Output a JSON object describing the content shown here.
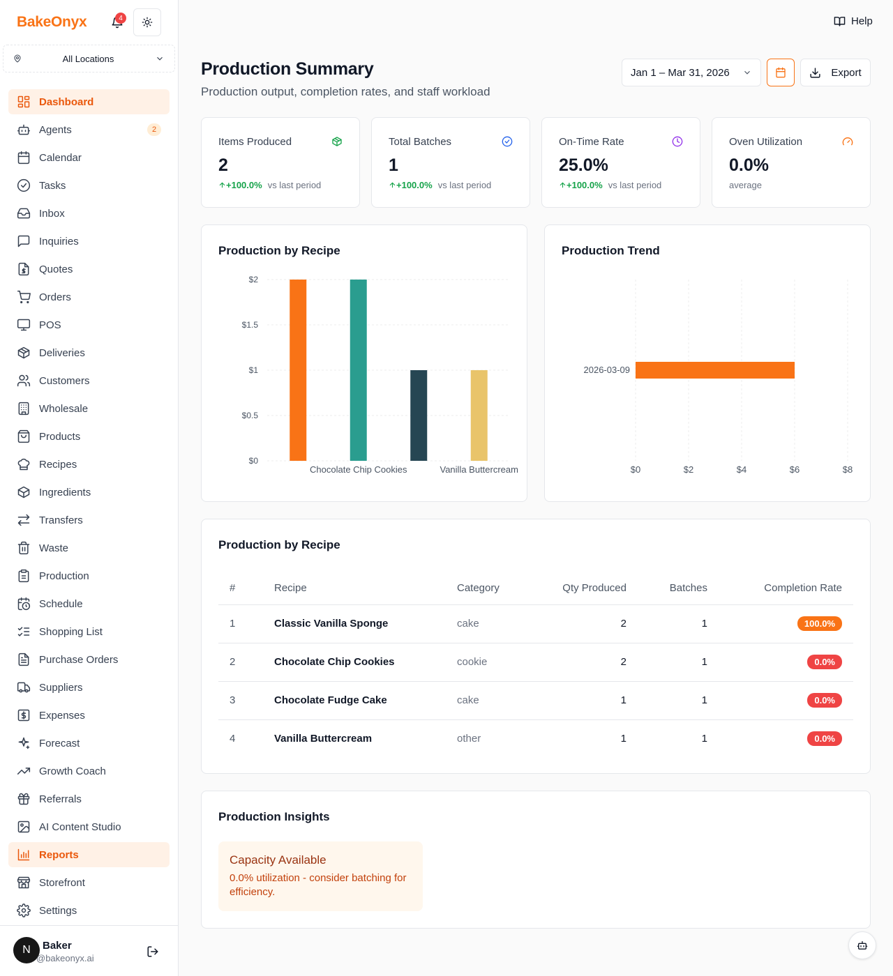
{
  "app": {
    "brand": "BakeOnyx",
    "notifications_count": "4",
    "location": "All Locations"
  },
  "sidebar": {
    "items": [
      {
        "label": "Dashboard",
        "icon": "dashboard-icon",
        "active": true
      },
      {
        "label": "Agents",
        "icon": "bot-icon",
        "badge": "2"
      },
      {
        "label": "Calendar",
        "icon": "calendar-icon"
      },
      {
        "label": "Tasks",
        "icon": "check-circle-icon"
      },
      {
        "label": "Inbox",
        "icon": "inbox-icon"
      },
      {
        "label": "Inquiries",
        "icon": "message-icon"
      },
      {
        "label": "Quotes",
        "icon": "file-dollar-icon"
      },
      {
        "label": "Orders",
        "icon": "cart-icon"
      },
      {
        "label": "POS",
        "icon": "monitor-icon"
      },
      {
        "label": "Deliveries",
        "icon": "package-icon"
      },
      {
        "label": "Customers",
        "icon": "users-icon"
      },
      {
        "label": "Wholesale",
        "icon": "building-icon"
      },
      {
        "label": "Products",
        "icon": "shopping-bag-icon"
      },
      {
        "label": "Recipes",
        "icon": "chef-hat-icon"
      },
      {
        "label": "Ingredients",
        "icon": "box-icon"
      },
      {
        "label": "Transfers",
        "icon": "arrows-icon"
      },
      {
        "label": "Waste",
        "icon": "trash-icon"
      },
      {
        "label": "Production",
        "icon": "clipboard-icon"
      },
      {
        "label": "Schedule",
        "icon": "calendar-clock-icon"
      },
      {
        "label": "Shopping List",
        "icon": "list-checks-icon"
      },
      {
        "label": "Purchase Orders",
        "icon": "file-text-icon"
      },
      {
        "label": "Suppliers",
        "icon": "truck-icon"
      },
      {
        "label": "Expenses",
        "icon": "receipt-icon"
      },
      {
        "label": "Forecast",
        "icon": "sparkles-icon"
      },
      {
        "label": "Growth Coach",
        "icon": "trending-up-icon"
      },
      {
        "label": "Referrals",
        "icon": "gift-icon"
      },
      {
        "label": "AI Content Studio",
        "icon": "image-sparkle-icon"
      },
      {
        "label": "Reports",
        "icon": "bar-chart-icon",
        "active": true
      },
      {
        "label": "Storefront",
        "icon": "store-icon"
      },
      {
        "label": "Settings",
        "icon": "gear-icon"
      }
    ]
  },
  "user": {
    "initial": "N",
    "name": "Baker",
    "email": "@bakeonyx.ai"
  },
  "header": {
    "help": "Help",
    "title": "Production Summary",
    "subtitle": "Production output, completion rates, and staff workload",
    "date_range": "Jan 1 – Mar 31, 2026",
    "export": "Export"
  },
  "stats": [
    {
      "label": "Items Produced",
      "value": "2",
      "change": "+100.0%",
      "note": "vs last period",
      "color": "#16a34a",
      "icon": "package-icon"
    },
    {
      "label": "Total Batches",
      "value": "1",
      "change": "+100.0%",
      "note": "vs last period",
      "color": "#2563eb",
      "icon": "check-circle-icon"
    },
    {
      "label": "On-Time Rate",
      "value": "25.0%",
      "change": "+100.0%",
      "note": "vs last period",
      "color": "#9333ea",
      "icon": "clock-icon"
    },
    {
      "label": "Oven Utilization",
      "value": "0.0%",
      "change": "",
      "note": "average",
      "color": "#f97316",
      "icon": "gauge-icon"
    }
  ],
  "chart_data": [
    {
      "type": "bar",
      "title": "Production by Recipe",
      "categories": [
        "Classic Vanilla Sponge",
        "Chocolate Chip Cookies",
        "Chocolate Fudge Cake",
        "Vanilla Buttercream"
      ],
      "visible_category_labels": [
        "Chocolate Chip Cookies",
        "Vanilla Buttercream"
      ],
      "values": [
        2,
        2,
        1,
        1
      ],
      "colors": [
        "#f97316",
        "#2a9d8f",
        "#264653",
        "#e9c46a"
      ],
      "yticks": [
        "$0",
        "$0.5",
        "$1",
        "$1.5",
        "$2"
      ],
      "ylim": [
        0,
        2
      ],
      "grid": true
    },
    {
      "type": "bar",
      "orientation": "horizontal",
      "title": "Production Trend",
      "categories": [
        "2026-03-09"
      ],
      "values": [
        6
      ],
      "colors": [
        "#f97316"
      ],
      "xticks": [
        "$0",
        "$2",
        "$4",
        "$6",
        "$8"
      ],
      "xlim": [
        0,
        8
      ],
      "grid": true
    }
  ],
  "table": {
    "title": "Production by Recipe",
    "columns": [
      "#",
      "Recipe",
      "Category",
      "Qty Produced",
      "Batches",
      "Completion Rate"
    ],
    "rows": [
      {
        "idx": "1",
        "recipe": "Classic Vanilla Sponge",
        "category": "cake",
        "qty": "2",
        "batches": "1",
        "rate": "100.0%",
        "rate_color": "#f97316"
      },
      {
        "idx": "2",
        "recipe": "Chocolate Chip Cookies",
        "category": "cookie",
        "qty": "2",
        "batches": "1",
        "rate": "0.0%",
        "rate_color": "#ef4444"
      },
      {
        "idx": "3",
        "recipe": "Chocolate Fudge Cake",
        "category": "cake",
        "qty": "1",
        "batches": "1",
        "rate": "0.0%",
        "rate_color": "#ef4444"
      },
      {
        "idx": "4",
        "recipe": "Vanilla Buttercream",
        "category": "other",
        "qty": "1",
        "batches": "1",
        "rate": "0.0%",
        "rate_color": "#ef4444"
      }
    ]
  },
  "insights": {
    "title": "Production Insights",
    "items": [
      {
        "title": "Capacity Available",
        "text": "0.0% utilization - consider batching for efficiency."
      }
    ]
  }
}
